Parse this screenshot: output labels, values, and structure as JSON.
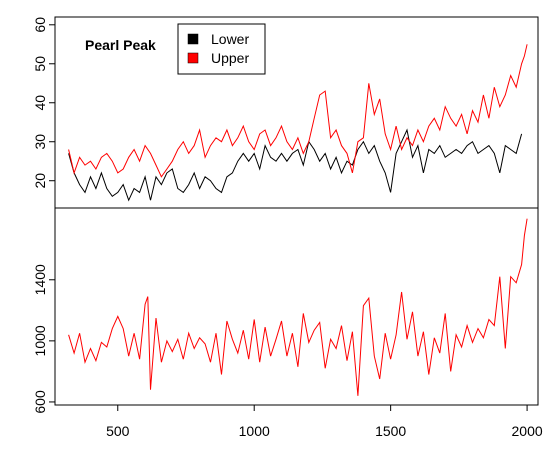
{
  "chart_data": [
    {
      "type": "line",
      "title": "Pearl Peak",
      "xlim": [
        270,
        2040
      ],
      "ylim": [
        13,
        62
      ],
      "yticks": [
        20,
        30,
        40,
        50,
        60
      ],
      "grid": false,
      "legend_position": "top-left",
      "series": [
        {
          "name": "Lower",
          "color": "#000000",
          "x": [
            320,
            340,
            360,
            380,
            400,
            420,
            440,
            460,
            480,
            500,
            520,
            540,
            560,
            580,
            600,
            620,
            640,
            660,
            680,
            700,
            720,
            740,
            760,
            780,
            800,
            820,
            840,
            860,
            880,
            900,
            920,
            940,
            960,
            980,
            1000,
            1020,
            1040,
            1060,
            1080,
            1100,
            1120,
            1140,
            1160,
            1180,
            1200,
            1220,
            1240,
            1260,
            1280,
            1300,
            1320,
            1340,
            1360,
            1380,
            1400,
            1420,
            1440,
            1460,
            1480,
            1500,
            1520,
            1540,
            1560,
            1580,
            1600,
            1620,
            1640,
            1660,
            1680,
            1700,
            1720,
            1740,
            1760,
            1780,
            1800,
            1820,
            1840,
            1860,
            1880,
            1900,
            1920,
            1940,
            1960,
            1980
          ],
          "y": [
            27,
            22,
            19,
            17,
            21,
            18,
            22,
            18,
            16,
            17,
            19,
            15,
            18,
            17,
            21,
            15,
            21,
            19,
            22,
            23,
            18,
            17,
            19,
            22,
            18,
            21,
            20,
            18,
            17,
            21,
            22,
            25,
            27,
            25,
            27,
            23,
            29,
            26,
            25,
            27,
            25,
            27,
            28,
            24,
            30,
            28,
            25,
            27,
            23,
            26,
            22,
            25,
            24,
            28,
            30,
            27,
            29,
            25,
            22,
            17,
            27,
            30,
            33,
            26,
            29,
            22,
            28,
            27,
            29,
            26,
            27,
            28,
            27,
            29,
            30,
            27,
            28,
            29,
            27,
            22,
            29,
            28,
            27,
            32
          ]
        },
        {
          "name": "Upper",
          "color": "#ff0000",
          "x": [
            320,
            340,
            360,
            380,
            400,
            420,
            440,
            460,
            480,
            500,
            520,
            540,
            560,
            580,
            600,
            620,
            640,
            660,
            680,
            700,
            720,
            740,
            760,
            780,
            800,
            820,
            840,
            860,
            880,
            900,
            920,
            940,
            960,
            980,
            1000,
            1020,
            1040,
            1060,
            1080,
            1100,
            1120,
            1140,
            1160,
            1180,
            1200,
            1220,
            1240,
            1260,
            1280,
            1300,
            1320,
            1340,
            1360,
            1380,
            1400,
            1420,
            1440,
            1460,
            1480,
            1500,
            1520,
            1540,
            1560,
            1580,
            1600,
            1620,
            1640,
            1660,
            1680,
            1700,
            1720,
            1740,
            1760,
            1780,
            1800,
            1820,
            1840,
            1860,
            1880,
            1900,
            1920,
            1940,
            1960,
            1980,
            1990,
            2000
          ],
          "y": [
            28,
            22,
            26,
            24,
            25,
            23,
            26,
            27,
            25,
            22,
            23,
            26,
            28,
            25,
            29,
            27,
            24,
            21,
            23,
            25,
            28,
            30,
            27,
            29,
            33,
            26,
            29,
            31,
            30,
            33,
            29,
            31,
            34,
            30,
            28,
            32,
            33,
            29,
            31,
            34,
            30,
            28,
            31,
            27,
            30,
            36,
            42,
            43,
            31,
            33,
            29,
            27,
            22,
            30,
            31,
            45,
            37,
            41,
            32,
            28,
            34,
            28,
            31,
            29,
            33,
            30,
            34,
            36,
            33,
            39,
            36,
            34,
            37,
            32,
            38,
            35,
            42,
            36,
            44,
            39,
            42,
            47,
            44,
            50,
            52,
            55
          ]
        }
      ]
    },
    {
      "type": "line",
      "xlim": [
        270,
        2040
      ],
      "ylim": [
        580,
        1870
      ],
      "yticks": [
        600,
        1000,
        1400
      ],
      "xticks": [
        500,
        1000,
        1500,
        2000
      ],
      "grid": false,
      "series": [
        {
          "color": "#ff0000",
          "x": [
            320,
            340,
            360,
            380,
            400,
            420,
            440,
            460,
            480,
            500,
            520,
            540,
            560,
            580,
            600,
            610,
            620,
            640,
            660,
            680,
            700,
            720,
            740,
            760,
            780,
            800,
            820,
            840,
            860,
            880,
            900,
            920,
            940,
            960,
            980,
            1000,
            1020,
            1040,
            1060,
            1080,
            1100,
            1120,
            1140,
            1160,
            1180,
            1200,
            1220,
            1240,
            1260,
            1280,
            1300,
            1320,
            1340,
            1360,
            1380,
            1400,
            1420,
            1440,
            1460,
            1480,
            1500,
            1520,
            1540,
            1560,
            1580,
            1600,
            1620,
            1640,
            1660,
            1680,
            1700,
            1720,
            1740,
            1760,
            1780,
            1800,
            1820,
            1840,
            1860,
            1880,
            1900,
            1920,
            1940,
            1960,
            1980,
            1990,
            2000
          ],
          "y": [
            1040,
            920,
            1050,
            860,
            950,
            870,
            990,
            960,
            1080,
            1160,
            1080,
            900,
            1050,
            880,
            1240,
            1290,
            680,
            1150,
            860,
            1000,
            930,
            1010,
            880,
            1050,
            950,
            1020,
            980,
            860,
            1050,
            780,
            1130,
            1010,
            920,
            1070,
            880,
            1140,
            860,
            1090,
            900,
            1010,
            1130,
            900,
            1050,
            830,
            1180,
            990,
            1070,
            1120,
            820,
            1010,
            950,
            1100,
            870,
            1060,
            640,
            1230,
            1280,
            900,
            750,
            1050,
            880,
            1040,
            1320,
            1010,
            1190,
            900,
            1060,
            780,
            1020,
            920,
            1180,
            800,
            1040,
            960,
            1100,
            990,
            1080,
            1020,
            1140,
            1100,
            1420,
            950,
            1420,
            1380,
            1500,
            1690,
            1800
          ]
        }
      ]
    }
  ]
}
